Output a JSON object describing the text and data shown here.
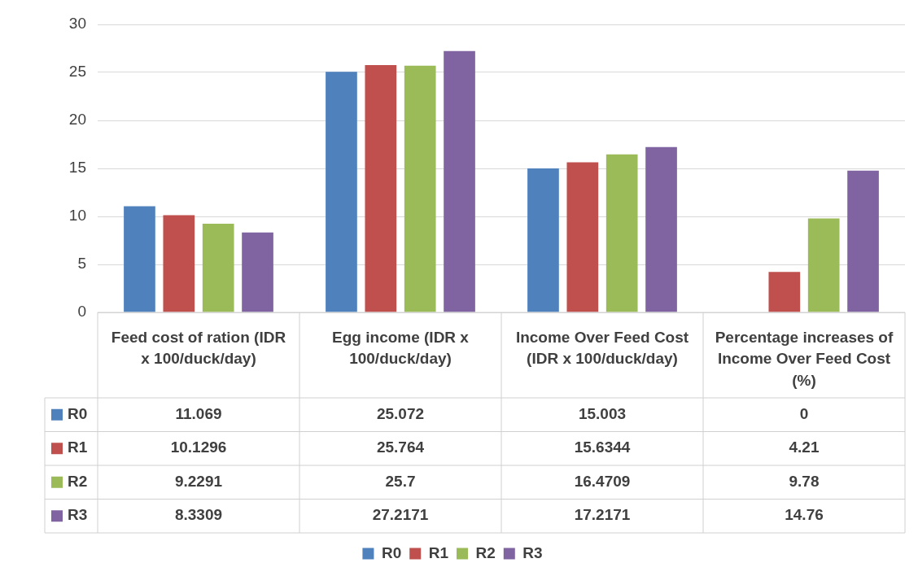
{
  "chart_data": {
    "type": "bar",
    "categories": [
      "Feed cost of ration (IDR x 100/duck/day)",
      "Egg income (IDR x 100/duck/day)",
      "Income Over Feed Cost (IDR x 100/duck/day)",
      "Percentage increases of Income Over Feed Cost (%)"
    ],
    "series": [
      {
        "name": "R0",
        "color": "#4f81bd",
        "values": [
          11.069,
          25.072,
          15.003,
          0
        ]
      },
      {
        "name": "R1",
        "color": "#c0504d",
        "values": [
          10.1296,
          25.764,
          15.6344,
          4.21
        ]
      },
      {
        "name": "R2",
        "color": "#9bbb59",
        "values": [
          9.2291,
          25.7,
          16.4709,
          9.78
        ]
      },
      {
        "name": "R3",
        "color": "#8064a2",
        "values": [
          8.3309,
          27.2171,
          17.2171,
          14.76
        ]
      }
    ],
    "ylim": [
      0,
      30
    ],
    "yticks": [
      0,
      5,
      10,
      15,
      20,
      25,
      30
    ],
    "grid": "y",
    "legend": "bottom",
    "data_labels": true
  }
}
